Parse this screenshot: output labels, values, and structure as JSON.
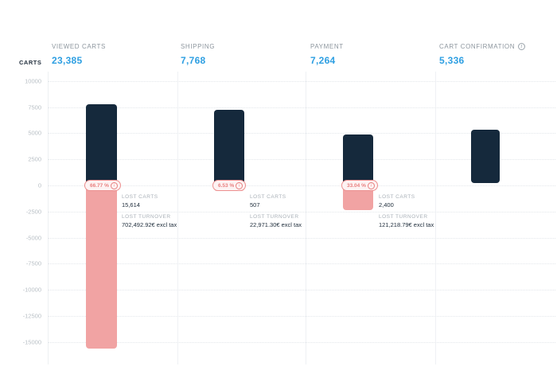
{
  "axis": {
    "label": "CARTS",
    "ticks": [
      {
        "value": 10000,
        "label": "10000"
      },
      {
        "value": 7500,
        "label": "7500"
      },
      {
        "value": 5000,
        "label": "5000"
      },
      {
        "value": 2500,
        "label": "2500"
      },
      {
        "value": 0,
        "label": "0"
      },
      {
        "value": -2500,
        "label": "-2500"
      },
      {
        "value": -5000,
        "label": "-5000"
      },
      {
        "value": -7500,
        "label": "-7500"
      },
      {
        "value": -10000,
        "label": "-10000"
      },
      {
        "value": -12500,
        "label": "-12500"
      },
      {
        "value": -15000,
        "label": "-15000"
      }
    ]
  },
  "labels": {
    "lost_carts": "LOST CARTS",
    "lost_turnover": "LOST TURNOVER",
    "info_icon_glyph": "i",
    "loss_arrow_glyph": "↓"
  },
  "colors": {
    "bar_positive": "#15293c",
    "bar_negative": "#f1a3a3",
    "value_accent": "#2e9fe2",
    "badge": "#e87f7f"
  },
  "chart_data": {
    "type": "bar",
    "subtype": "funnel-waterfall",
    "ylabel": "CARTS",
    "ylim": [
      -15000,
      10000
    ],
    "grid": true,
    "legend": "none",
    "categories": [
      "VIEWED CARTS",
      "SHIPPING",
      "PAYMENT",
      "CART CONFIRMATION"
    ],
    "series": [
      {
        "name": "retained (dark)",
        "values": [
          7771,
          7261,
          4864,
          5336
        ]
      },
      {
        "name": "lost (pink, below zero)",
        "values": [
          -15614,
          -507,
          -2400,
          0
        ]
      }
    ],
    "steps": [
      {
        "label": "VIEWED CARTS",
        "value": 23385,
        "value_display": "23,385",
        "has_info_icon": false,
        "lost_carts": 15614,
        "lost_carts_display": "15,614",
        "lost_turnover_display": "702,492.92€ excl tax",
        "loss_pct_display": "66.77 %"
      },
      {
        "label": "SHIPPING",
        "value": 7768,
        "value_display": "7,768",
        "has_info_icon": false,
        "lost_carts": 507,
        "lost_carts_display": "507",
        "lost_turnover_display": "22,971.30€ excl tax",
        "loss_pct_display": "6.53 %"
      },
      {
        "label": "PAYMENT",
        "value": 7264,
        "value_display": "7,264",
        "has_info_icon": false,
        "lost_carts": 2400,
        "lost_carts_display": "2,400",
        "lost_turnover_display": "121,218.79€ excl tax",
        "loss_pct_display": "33.04 %"
      },
      {
        "label": "CART CONFIRMATION",
        "value": 5336,
        "value_display": "5,336",
        "has_info_icon": true,
        "lost_carts": 0,
        "lost_carts_display": "",
        "lost_turnover_display": "",
        "loss_pct_display": ""
      }
    ]
  }
}
